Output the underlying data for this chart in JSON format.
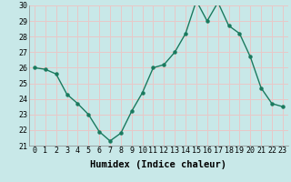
{
  "x": [
    0,
    1,
    2,
    3,
    4,
    5,
    6,
    7,
    8,
    9,
    10,
    11,
    12,
    13,
    14,
    15,
    16,
    17,
    18,
    19,
    20,
    21,
    22,
    23
  ],
  "y": [
    26.0,
    25.9,
    25.6,
    24.3,
    23.7,
    23.0,
    21.9,
    21.3,
    21.8,
    23.2,
    24.4,
    26.0,
    26.2,
    27.0,
    28.2,
    30.3,
    29.0,
    30.2,
    28.7,
    28.2,
    26.7,
    24.7,
    23.7,
    23.5
  ],
  "xlabel": "Humidex (Indice chaleur)",
  "ylim": [
    21,
    30
  ],
  "yticks": [
    21,
    22,
    23,
    24,
    25,
    26,
    27,
    28,
    29,
    30
  ],
  "xticks": [
    0,
    1,
    2,
    3,
    4,
    5,
    6,
    7,
    8,
    9,
    10,
    11,
    12,
    13,
    14,
    15,
    16,
    17,
    18,
    19,
    20,
    21,
    22,
    23
  ],
  "line_color": "#1a7a5e",
  "marker_color": "#1a7a5e",
  "bg_color": "#c8e8e8",
  "grid_color": "#e8c8c8",
  "tick_label_fontsize": 6.0,
  "xlabel_fontsize": 7.5
}
